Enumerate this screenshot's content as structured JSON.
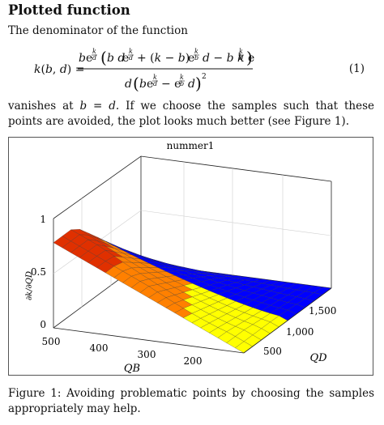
{
  "section": {
    "title": "Plotted function"
  },
  "paragraph1": "The denominator of the function",
  "paragraph2_before": "vanishes at",
  "paragraph2_math": "b = d.",
  "paragraph2_after": "If we choose the samples such that these points are avoided, the plot looks much better (see Figure 1).",
  "equation": {
    "number": "(1)"
  },
  "figure": {
    "caption": "Figure 1: Avoiding problematic points by choosing the samples appropriately may help."
  },
  "chart_data": {
    "type": "surface",
    "title": "nummer1",
    "xlabel": "QB",
    "ylabel": "QD",
    "zlabel": "∂k/∂QD",
    "x_ticks": [
      "500",
      "400",
      "300",
      "200"
    ],
    "y_ticks": [
      "500",
      "1,000",
      "1,500"
    ],
    "z_ticks": [
      "0",
      "0.5",
      "1"
    ],
    "colormap": [
      "#0000ff",
      "#ffff00",
      "#ff8000",
      "#e03000"
    ]
  }
}
